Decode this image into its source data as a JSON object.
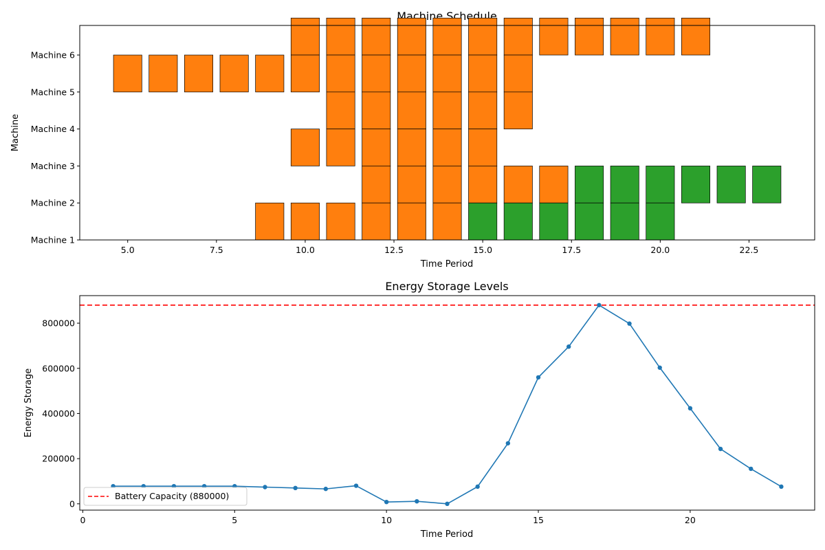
{
  "chart_data": [
    {
      "type": "bar",
      "title": "Machine Schedule",
      "xlabel": "Time Period",
      "ylabel": "Machine",
      "xlim": [
        3.65,
        24.35
      ],
      "xticks": [
        5.0,
        7.5,
        10.0,
        12.5,
        15.0,
        17.5,
        20.0,
        22.5
      ],
      "xtick_labels": [
        "5.0",
        "7.5",
        "10.0",
        "12.5",
        "15.0",
        "17.5",
        "20.0",
        "22.5"
      ],
      "ylim": [
        1,
        6.8
      ],
      "yticks": [
        1,
        2,
        3,
        4,
        5,
        6
      ],
      "ytick_labels": [
        "Machine 1",
        "Machine 2",
        "Machine 3",
        "Machine 4",
        "Machine 5",
        "Machine 6"
      ],
      "bar_width": 0.8,
      "colors": {
        "orange": "#ff7f0e",
        "green": "#2ca02c",
        "edge": "#000000"
      },
      "bars": [
        {
          "t": 5,
          "y0": 5,
          "y1": 6,
          "color": "orange"
        },
        {
          "t": 6,
          "y0": 5,
          "y1": 6,
          "color": "orange"
        },
        {
          "t": 7,
          "y0": 5,
          "y1": 6,
          "color": "orange"
        },
        {
          "t": 8,
          "y0": 5,
          "y1": 6,
          "color": "orange"
        },
        {
          "t": 9,
          "y0": 5,
          "y1": 6,
          "color": "orange"
        },
        {
          "t": 9,
          "y0": 1,
          "y1": 2,
          "color": "orange"
        },
        {
          "t": 10,
          "y0": 6,
          "y1": 7,
          "color": "orange"
        },
        {
          "t": 10,
          "y0": 5,
          "y1": 6,
          "color": "orange"
        },
        {
          "t": 10,
          "y0": 3,
          "y1": 4,
          "color": "orange"
        },
        {
          "t": 10,
          "y0": 1,
          "y1": 2,
          "color": "orange"
        },
        {
          "t": 11,
          "y0": 6,
          "y1": 7,
          "color": "orange"
        },
        {
          "t": 11,
          "y0": 5,
          "y1": 6,
          "color": "orange"
        },
        {
          "t": 11,
          "y0": 4,
          "y1": 5,
          "color": "orange"
        },
        {
          "t": 11,
          "y0": 3,
          "y1": 4,
          "color": "orange"
        },
        {
          "t": 11,
          "y0": 1,
          "y1": 2,
          "color": "orange"
        },
        {
          "t": 12,
          "y0": 6,
          "y1": 7,
          "color": "orange"
        },
        {
          "t": 12,
          "y0": 5,
          "y1": 6,
          "color": "orange"
        },
        {
          "t": 12,
          "y0": 4,
          "y1": 5,
          "color": "orange"
        },
        {
          "t": 12,
          "y0": 3,
          "y1": 4,
          "color": "orange"
        },
        {
          "t": 12,
          "y0": 2,
          "y1": 3,
          "color": "orange"
        },
        {
          "t": 12,
          "y0": 1,
          "y1": 2,
          "color": "orange"
        },
        {
          "t": 13,
          "y0": 6,
          "y1": 7,
          "color": "orange"
        },
        {
          "t": 13,
          "y0": 5,
          "y1": 6,
          "color": "orange"
        },
        {
          "t": 13,
          "y0": 4,
          "y1": 5,
          "color": "orange"
        },
        {
          "t": 13,
          "y0": 3,
          "y1": 4,
          "color": "orange"
        },
        {
          "t": 13,
          "y0": 2,
          "y1": 3,
          "color": "orange"
        },
        {
          "t": 13,
          "y0": 1,
          "y1": 2,
          "color": "orange"
        },
        {
          "t": 14,
          "y0": 6,
          "y1": 7,
          "color": "orange"
        },
        {
          "t": 14,
          "y0": 5,
          "y1": 6,
          "color": "orange"
        },
        {
          "t": 14,
          "y0": 4,
          "y1": 5,
          "color": "orange"
        },
        {
          "t": 14,
          "y0": 3,
          "y1": 4,
          "color": "orange"
        },
        {
          "t": 14,
          "y0": 2,
          "y1": 3,
          "color": "orange"
        },
        {
          "t": 14,
          "y0": 1,
          "y1": 2,
          "color": "orange"
        },
        {
          "t": 15,
          "y0": 6,
          "y1": 7,
          "color": "orange"
        },
        {
          "t": 15,
          "y0": 5,
          "y1": 6,
          "color": "orange"
        },
        {
          "t": 15,
          "y0": 4,
          "y1": 5,
          "color": "orange"
        },
        {
          "t": 15,
          "y0": 3,
          "y1": 4,
          "color": "orange"
        },
        {
          "t": 15,
          "y0": 2,
          "y1": 3,
          "color": "orange"
        },
        {
          "t": 15,
          "y0": 1,
          "y1": 2,
          "color": "green"
        },
        {
          "t": 16,
          "y0": 6,
          "y1": 7,
          "color": "orange"
        },
        {
          "t": 16,
          "y0": 5,
          "y1": 6,
          "color": "orange"
        },
        {
          "t": 16,
          "y0": 4,
          "y1": 5,
          "color": "orange"
        },
        {
          "t": 16,
          "y0": 2,
          "y1": 3,
          "color": "orange"
        },
        {
          "t": 16,
          "y0": 1,
          "y1": 2,
          "color": "green"
        },
        {
          "t": 17,
          "y0": 6,
          "y1": 7,
          "color": "orange"
        },
        {
          "t": 17,
          "y0": 2,
          "y1": 3,
          "color": "orange"
        },
        {
          "t": 17,
          "y0": 1,
          "y1": 2,
          "color": "green"
        },
        {
          "t": 18,
          "y0": 6,
          "y1": 7,
          "color": "orange"
        },
        {
          "t": 18,
          "y0": 2,
          "y1": 3,
          "color": "green"
        },
        {
          "t": 18,
          "y0": 1,
          "y1": 2,
          "color": "green"
        },
        {
          "t": 19,
          "y0": 6,
          "y1": 7,
          "color": "orange"
        },
        {
          "t": 19,
          "y0": 2,
          "y1": 3,
          "color": "green"
        },
        {
          "t": 19,
          "y0": 1,
          "y1": 2,
          "color": "green"
        },
        {
          "t": 20,
          "y0": 6,
          "y1": 7,
          "color": "orange"
        },
        {
          "t": 20,
          "y0": 2,
          "y1": 3,
          "color": "green"
        },
        {
          "t": 20,
          "y0": 1,
          "y1": 2,
          "color": "green"
        },
        {
          "t": 21,
          "y0": 6,
          "y1": 7,
          "color": "orange"
        },
        {
          "t": 21,
          "y0": 2,
          "y1": 3,
          "color": "green"
        },
        {
          "t": 22,
          "y0": 2,
          "y1": 3,
          "color": "green"
        },
        {
          "t": 23,
          "y0": 2,
          "y1": 3,
          "color": "green"
        }
      ]
    },
    {
      "type": "line",
      "title": "Energy Storage Levels",
      "xlabel": "Time Period",
      "ylabel": "Energy Storage",
      "xlim": [
        -0.1,
        24.1
      ],
      "xticks": [
        0,
        5,
        10,
        15,
        20
      ],
      "xtick_labels": [
        "0",
        "5",
        "10",
        "15",
        "20"
      ],
      "ylim": [
        -28000,
        922000
      ],
      "yticks": [
        0,
        200000,
        400000,
        600000,
        800000
      ],
      "ytick_labels": [
        "0",
        "200000",
        "400000",
        "600000",
        "800000"
      ],
      "series": [
        {
          "color": "#1f77b4",
          "x": [
            1,
            2,
            3,
            4,
            5,
            6,
            7,
            8,
            9,
            10,
            11,
            12,
            13,
            14,
            15,
            16,
            17,
            18,
            19,
            20,
            21,
            22,
            23
          ],
          "values": [
            78000,
            78000,
            78000,
            78000,
            78000,
            74000,
            70000,
            66000,
            80000,
            8000,
            11000,
            0,
            76000,
            268000,
            560000,
            696000,
            880000,
            798000,
            603000,
            423000,
            243000,
            155000,
            76000
          ]
        }
      ],
      "hline": {
        "value": 880000,
        "color": "#ff0000",
        "label": "Battery Capacity (880000)"
      },
      "legend": "bottom-left",
      "grid": false
    }
  ]
}
